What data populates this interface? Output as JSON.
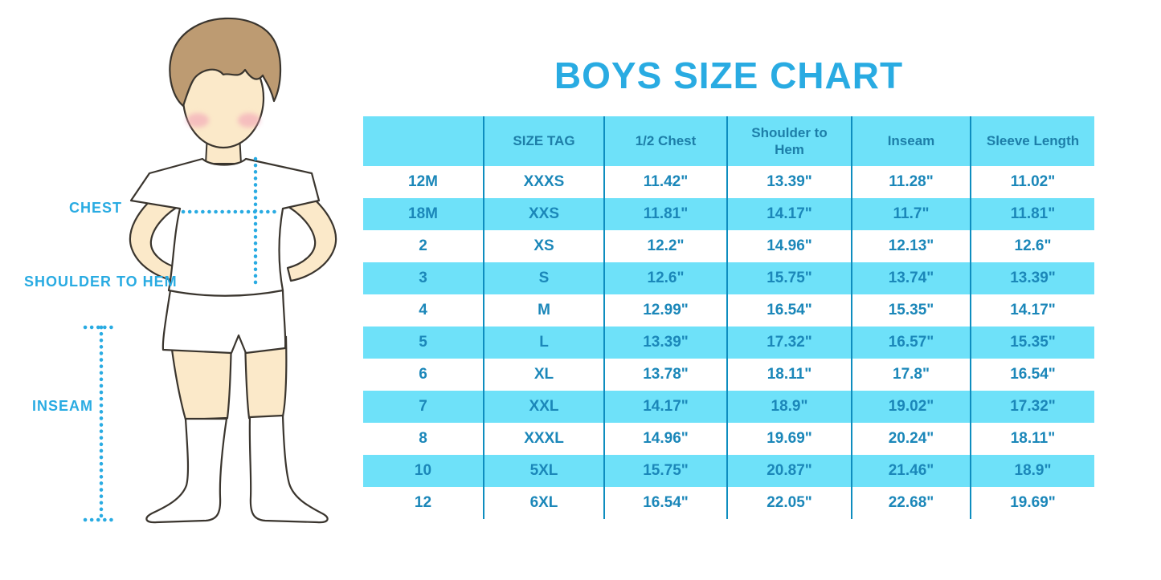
{
  "title": "BOYS SIZE CHART",
  "figure": {
    "labels": {
      "chest": "CHEST",
      "shoulder_to_hem": "SHOULDER TO HEM",
      "inseam": "INSEAM"
    }
  },
  "colors": {
    "accent_blue": "#29ABE2",
    "table_stripe": "#6EE1F9",
    "table_header_text": "#1D7EA8",
    "table_cell_text": "#1B87B9",
    "table_border": "#0E8DBF",
    "hair_brown": "#BD9B72",
    "skin": "#FBE9C9",
    "blush_pink": "#F2A3B7"
  },
  "chart_data": {
    "type": "table",
    "title": "BOYS SIZE CHART",
    "columns": [
      "",
      "SIZE TAG",
      "1/2 Chest",
      "Shoulder to Hem",
      "Inseam",
      "Sleeve Length"
    ],
    "rows": [
      [
        "12M",
        "XXXS",
        "11.42\"",
        "13.39\"",
        "11.28\"",
        "11.02\""
      ],
      [
        "18M",
        "XXS",
        "11.81\"",
        "14.17\"",
        "11.7\"",
        "11.81\""
      ],
      [
        "2",
        "XS",
        "12.2\"",
        "14.96\"",
        "12.13\"",
        "12.6\""
      ],
      [
        "3",
        "S",
        "12.6\"",
        "15.75\"",
        "13.74\"",
        "13.39\""
      ],
      [
        "4",
        "M",
        "12.99\"",
        "16.54\"",
        "15.35\"",
        "14.17\""
      ],
      [
        "5",
        "L",
        "13.39\"",
        "17.32\"",
        "16.57\"",
        "15.35\""
      ],
      [
        "6",
        "XL",
        "13.78\"",
        "18.11\"",
        "17.8\"",
        "16.54\""
      ],
      [
        "7",
        "XXL",
        "14.17\"",
        "18.9\"",
        "19.02\"",
        "17.32\""
      ],
      [
        "8",
        "XXXL",
        "14.96\"",
        "19.69\"",
        "20.24\"",
        "18.11\""
      ],
      [
        "10",
        "5XL",
        "15.75\"",
        "20.87\"",
        "21.46\"",
        "18.9\""
      ],
      [
        "12",
        "6XL",
        "16.54\"",
        "22.05\"",
        "22.68\"",
        "19.69\""
      ]
    ]
  }
}
